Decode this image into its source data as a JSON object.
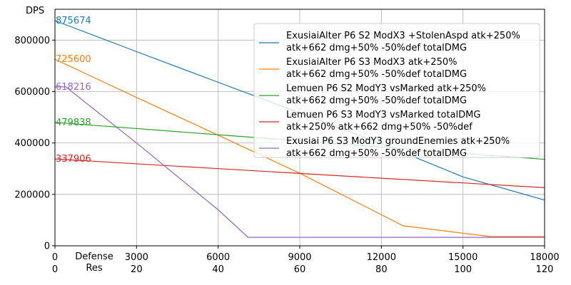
{
  "chart_data": {
    "type": "line",
    "ylabel": "DPS",
    "xlabel_lines": [
      "Defense",
      "Res"
    ],
    "xlim": [
      0,
      18000
    ],
    "ylim": [
      0,
      920000
    ],
    "grid": true,
    "legend_placement": "top-right",
    "x_ticks": [
      0,
      3000,
      6000,
      9000,
      12000,
      15000,
      18000
    ],
    "x_tick_labels": [
      "0",
      "3000",
      "6000",
      "9000",
      "12000",
      "15000",
      "18000"
    ],
    "x2_tick_labels": [
      "0",
      "20",
      "40",
      "60",
      "80",
      "100",
      "120"
    ],
    "y_ticks": [
      0,
      200000,
      400000,
      600000,
      800000
    ],
    "y_tick_labels": [
      "0",
      "200000",
      "400000",
      "600000",
      "800000"
    ],
    "series": [
      {
        "name_lines": [
          "ExusiaiAlter P6 S2 ModX3 +StolenAspd atk+250%",
          "atk+662 dmg+50% -50%def totalDMG"
        ],
        "color": "#1f77b4",
        "start_label": "875674",
        "x": [
          0,
          3000,
          6000,
          9000,
          12000,
          15000,
          18000
        ],
        "y": [
          875674,
          755000,
          636000,
          517000,
          398000,
          268000,
          178000
        ]
      },
      {
        "name_lines": [
          "ExusiaiAlter P6 S3 ModX3 atk+250%",
          "atk+662 dmg+50% -50%def totalDMG"
        ],
        "color": "#ff7f0e",
        "start_label": "725600",
        "x": [
          0,
          3000,
          6000,
          9000,
          12800,
          16000,
          18000
        ],
        "y": [
          725600,
          577000,
          430000,
          282000,
          78000,
          36000,
          36000
        ]
      },
      {
        "name_lines": [
          "Lemuen P6 S2 ModY3 vsMarked atk+250%",
          "atk+662 dmg+50% -50%def totalDMG"
        ],
        "color": "#2ca02c",
        "start_label": "479838",
        "x": [
          0,
          6000,
          12000,
          18000
        ],
        "y": [
          479838,
          432000,
          384000,
          336000
        ]
      },
      {
        "name_lines": [
          "Lemuen P6 S3 ModY3 vsMarked totalDMG",
          "atk+250% atk+662 dmg+50% -50%def"
        ],
        "color": "#d62728",
        "start_label": "337906",
        "x": [
          0,
          6000,
          12000,
          18000
        ],
        "y": [
          337906,
          300000,
          263000,
          226000
        ]
      },
      {
        "name_lines": [
          "Exusiai P6 S3 ModY3 groundEnemies atk+250%",
          "atk+662 dmg+50% -50%def totalDMG"
        ],
        "color": "#9467bd",
        "start_label": "618216",
        "x": [
          0,
          400,
          3000,
          6000,
          7100,
          18000
        ],
        "y": [
          618216,
          618216,
          400000,
          140000,
          33000,
          33000
        ]
      }
    ]
  }
}
